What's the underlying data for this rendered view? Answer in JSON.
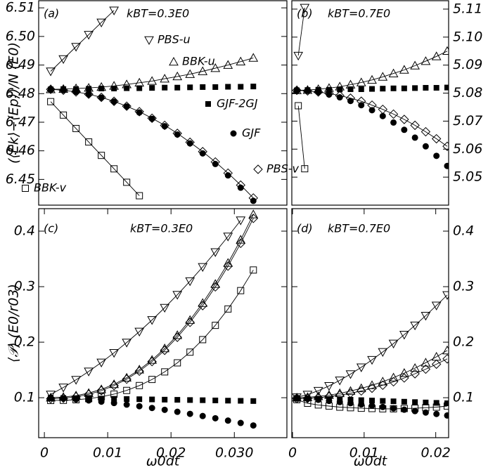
{
  "chart_data": [
    {
      "type": "line",
      "panel_label": "(a)",
      "annotation": "kBT=0.3E0",
      "ylabel": "(⟨Ek⟩−⟨Ep⟩)/N (E0)",
      "yaxis_side": "left",
      "color": "#000000",
      "xlim": [
        -0.0009,
        0.0383
      ],
      "ylim": [
        6.441,
        6.5125
      ],
      "yticks": [
        6.45,
        6.46,
        6.47,
        6.48,
        6.49,
        {
          "value": 6.5,
          "label": "6.50"
        },
        6.51
      ],
      "x": [
        0.001,
        0.003,
        0.005,
        0.007,
        0.009,
        0.011,
        0.013,
        0.015,
        0.017,
        0.019,
        0.021,
        0.023,
        0.025,
        0.027,
        0.029,
        0.031,
        0.033
      ],
      "series": [
        {
          "name": "PBS-u",
          "marker": "triangle-down",
          "line": true,
          "values": [
            6.4878,
            6.4921,
            6.4964,
            6.5006,
            6.5049,
            6.5091,
            null,
            null,
            null,
            null,
            null,
            null,
            null,
            null,
            null,
            null,
            null
          ]
        },
        {
          "name": "BBK-u",
          "marker": "triangle-up",
          "line": true,
          "values": [
            6.4815,
            6.4816,
            6.4818,
            6.482,
            6.4823,
            6.4827,
            6.4832,
            6.4838,
            6.4844,
            6.4852,
            6.486,
            6.4868,
            6.4878,
            6.4889,
            6.49,
            6.4912,
            6.4925
          ]
        },
        {
          "name": "GJF-2GJ",
          "marker": "square-filled",
          "line": false,
          "values": [
            6.4815,
            6.4816,
            6.4816,
            6.4817,
            6.4818,
            6.4818,
            6.4819,
            6.4819,
            6.482,
            6.4821,
            6.4821,
            6.4822,
            6.4823,
            6.4823,
            6.4824,
            6.4824,
            6.4825
          ]
        },
        {
          "name": "GJF",
          "marker": "circle-filled",
          "line": false,
          "values": [
            6.4815,
            6.4812,
            6.4806,
            6.4797,
            6.4786,
            6.4772,
            6.4755,
            6.4734,
            6.4712,
            6.4686,
            6.4657,
            6.4626,
            6.4591,
            6.4554,
            6.4514,
            6.4471,
            6.4425
          ]
        },
        {
          "name": "PBS-v",
          "marker": "diamond",
          "line": true,
          "values": [
            6.4815,
            6.4812,
            6.4806,
            6.4798,
            6.4787,
            6.4773,
            6.4756,
            6.4737,
            6.4714,
            6.4689,
            6.4661,
            6.463,
            6.4597,
            6.4561,
            6.4522,
            6.448,
            6.4435
          ]
        },
        {
          "name": "BBK-v",
          "marker": "square",
          "line": true,
          "values": [
            6.4772,
            6.4725,
            6.4678,
            6.4631,
            6.4584,
            6.4537,
            6.449,
            6.4443,
            null,
            null,
            null,
            null,
            null,
            null,
            null,
            null,
            null
          ]
        }
      ]
    },
    {
      "type": "line",
      "panel_label": "(b)",
      "annotation": "kBT=0.7E0",
      "yaxis_side": "right",
      "color": "#000000",
      "xlim": [
        -0.0001,
        0.0218
      ],
      "ylim": [
        5.04,
        5.113
      ],
      "yticks": [
        5.05,
        5.06,
        5.07,
        5.08,
        5.09,
        {
          "value": 5.1,
          "label": "5.10"
        },
        5.11
      ],
      "x": [
        0.0006,
        0.0021,
        0.0036,
        0.0051,
        0.0066,
        0.0081,
        0.0096,
        0.0111,
        0.0126,
        0.0141,
        0.0156,
        0.0171,
        0.0186,
        0.0201,
        0.0216
      ],
      "series": [
        {
          "marker": "triangle-down",
          "line": true,
          "x": [
            0.0008,
            0.0017
          ],
          "values": [
            5.0934,
            5.1105
          ]
        },
        {
          "marker": "triangle-up",
          "line": true,
          "values": [
            5.081,
            5.0811,
            5.0814,
            5.0818,
            5.0823,
            5.083,
            5.0838,
            5.0847,
            5.0858,
            5.087,
            5.0883,
            5.0898,
            5.0914,
            5.0931,
            5.095
          ]
        },
        {
          "marker": "square-filled",
          "line": false,
          "values": [
            5.081,
            5.0811,
            5.0812,
            5.0812,
            5.0813,
            5.0814,
            5.0814,
            5.0815,
            5.0816,
            5.0817,
            5.0817,
            5.0818,
            5.0819,
            5.0819,
            5.082
          ]
        },
        {
          "marker": "circle-filled",
          "line": false,
          "values": [
            5.081,
            5.0808,
            5.0803,
            5.0795,
            5.0785,
            5.0772,
            5.0757,
            5.0739,
            5.0718,
            5.0695,
            5.0669,
            5.0641,
            5.061,
            5.0576,
            5.054
          ]
        },
        {
          "marker": "diamond",
          "line": true,
          "values": [
            5.081,
            5.0808,
            5.0804,
            5.0799,
            5.0791,
            5.0782,
            5.0771,
            5.0757,
            5.0742,
            5.0725,
            5.0706,
            5.0685,
            5.0662,
            5.0637,
            5.061
          ]
        },
        {
          "marker": "square",
          "line": true,
          "x": [
            0.0008,
            0.0017
          ],
          "values": [
            5.0755,
            5.053
          ]
        }
      ]
    },
    {
      "type": "line",
      "panel_label": "(c)",
      "annotation": "kBT=0.3E0",
      "ylabel": "⟨𝒫⟩ (E0/r03)",
      "xlabel": "ω0dt",
      "yaxis_side": "left",
      "color": "#000000",
      "xlim": [
        -0.0009,
        0.0383
      ],
      "ylim": [
        0.028,
        0.4405
      ],
      "xticks": [
        0,
        0.01,
        0.02,
        {
          "value": 0.03,
          "label": "0.030"
        }
      ],
      "yticks": [
        0.1,
        0.2,
        0.3,
        0.4
      ],
      "x": [
        0.001,
        0.003,
        0.005,
        0.007,
        0.009,
        0.011,
        0.013,
        0.015,
        0.017,
        0.019,
        0.021,
        0.023,
        0.025,
        0.027,
        0.029,
        0.031,
        0.033
      ],
      "series": [
        {
          "marker": "triangle-down",
          "line": true,
          "values": [
            0.1058,
            0.1185,
            0.1323,
            0.1473,
            0.1635,
            0.1808,
            0.1994,
            0.2191,
            0.24,
            0.2621,
            0.2854,
            0.3099,
            0.3355,
            0.3623,
            0.3904,
            0.4195,
            null
          ]
        },
        {
          "marker": "triangle-up",
          "line": true,
          "values": [
            0.1001,
            0.1011,
            0.1037,
            0.1083,
            0.115,
            0.1242,
            0.1359,
            0.1505,
            0.168,
            0.1887,
            0.2125,
            0.2398,
            0.2704,
            0.3047,
            0.3426,
            0.3844,
            0.43
          ]
        },
        {
          "marker": "square-filled",
          "line": false,
          "values": [
            0.0998,
            0.0995,
            0.0991,
            0.0987,
            0.0984,
            0.098,
            0.0976,
            0.0973,
            0.0969,
            0.0965,
            0.0962,
            0.0958,
            0.0955,
            0.0951,
            0.0947,
            0.0944,
            0.094
          ]
        },
        {
          "marker": "circle-filled",
          "line": false,
          "values": [
            0.0997,
            0.0986,
            0.097,
            0.0951,
            0.0929,
            0.0904,
            0.0876,
            0.0847,
            0.0815,
            0.0782,
            0.0746,
            0.0709,
            0.067,
            0.063,
            0.0588,
            0.0545,
            0.05
          ]
        },
        {
          "marker": "diamond",
          "line": true,
          "values": [
            0.0981,
            0.0991,
            0.1016,
            0.1061,
            0.1128,
            0.1218,
            0.1334,
            0.1478,
            0.165,
            0.1854,
            0.2088,
            0.2357,
            0.2659,
            0.2996,
            0.337,
            0.3781,
            0.423
          ]
        },
        {
          "marker": "square",
          "line": true,
          "values": [
            0.095,
            0.0953,
            0.0963,
            0.0983,
            0.1016,
            0.1065,
            0.1131,
            0.1219,
            0.1329,
            0.1465,
            0.1628,
            0.1821,
            0.2046,
            0.2303,
            0.2598,
            0.2929,
            0.33
          ]
        }
      ]
    },
    {
      "type": "line",
      "panel_label": "(d)",
      "annotation": "kBT=0.7E0",
      "xlabel": "ω0dt",
      "yaxis_side": "right",
      "color": "#000000",
      "xlim": [
        -0.0001,
        0.0218
      ],
      "ylim": [
        0.028,
        0.4405
      ],
      "xticks": [
        0,
        0.01,
        0.02
      ],
      "yticks": [
        0.1,
        0.2,
        0.3,
        0.4
      ],
      "x": [
        0.0006,
        0.0021,
        0.0036,
        0.0051,
        0.0066,
        0.0081,
        0.0096,
        0.0111,
        0.0126,
        0.0141,
        0.0156,
        0.0171,
        0.0186,
        0.0201,
        0.0216
      ],
      "series": [
        {
          "marker": "triangle-down",
          "line": true,
          "values": [
            0.1009,
            0.1056,
            0.1126,
            0.1212,
            0.1312,
            0.1425,
            0.1548,
            0.1682,
            0.1824,
            0.1976,
            0.2136,
            0.2303,
            0.2478,
            0.2661,
            0.285
          ]
        },
        {
          "marker": "triangle-up",
          "line": true,
          "values": [
            0.1001,
            0.1008,
            0.1024,
            0.1047,
            0.1079,
            0.112,
            0.1168,
            0.1224,
            0.1289,
            0.1362,
            0.1443,
            0.1533,
            0.163,
            0.1736,
            0.185
          ]
        },
        {
          "marker": "square-filled",
          "line": false,
          "values": [
            0.0997,
            0.099,
            0.0983,
            0.0976,
            0.0969,
            0.0963,
            0.0956,
            0.0949,
            0.0942,
            0.0935,
            0.0928,
            0.0921,
            0.0914,
            0.0907,
            0.09
          ]
        },
        {
          "marker": "circle-filled",
          "line": false,
          "values": [
            0.0995,
            0.098,
            0.0962,
            0.0942,
            0.0922,
            0.0901,
            0.0879,
            0.0856,
            0.0833,
            0.0809,
            0.0784,
            0.0759,
            0.0733,
            0.0707,
            0.068
          ]
        },
        {
          "marker": "diamond",
          "line": true,
          "values": [
            0.0981,
            0.0987,
            0.1,
            0.102,
            0.1047,
            0.1081,
            0.1122,
            0.117,
            0.1225,
            0.1287,
            0.1356,
            0.1431,
            0.1514,
            0.1604,
            0.17
          ]
        },
        {
          "marker": "square",
          "line": true,
          "values": [
            0.0965,
            0.09,
            0.087,
            0.085,
            0.083,
            0.082,
            0.081,
            0.0805,
            0.08,
            0.08,
            0.0805,
            0.081,
            0.082,
            0.083,
            0.085
          ]
        }
      ]
    }
  ]
}
